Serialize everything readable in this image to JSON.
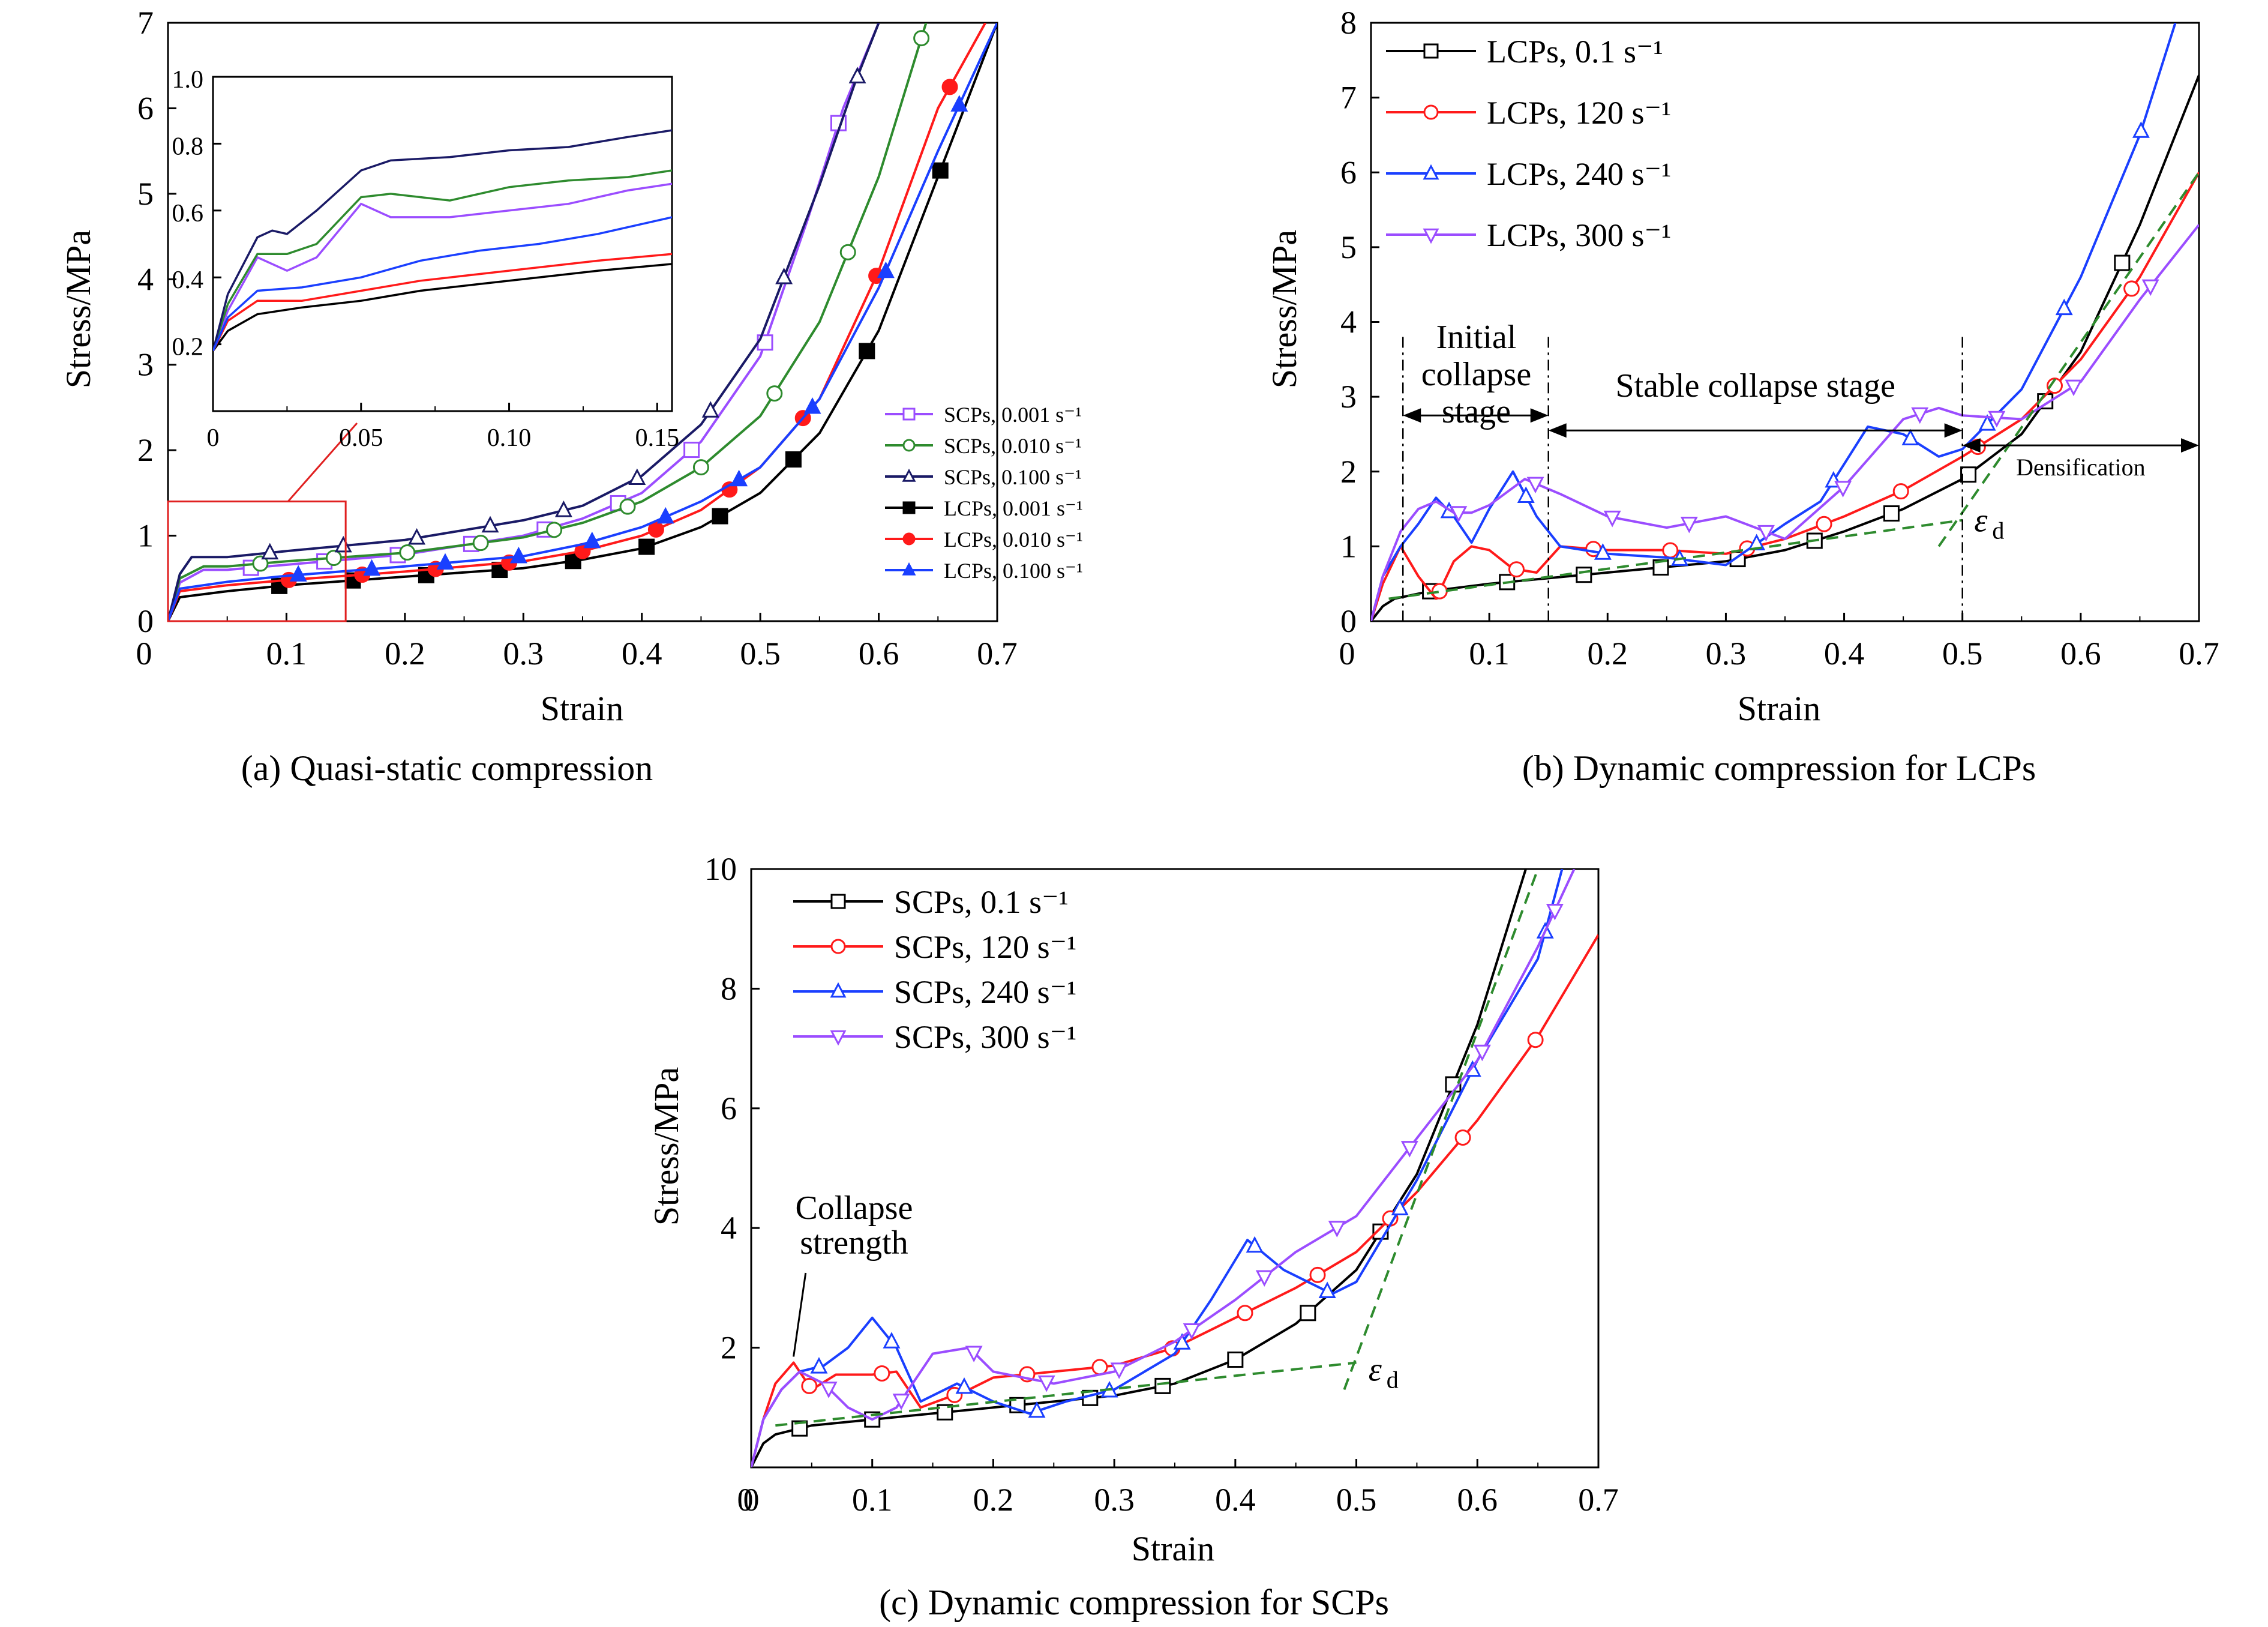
{
  "chart_data": [
    {
      "id": "a",
      "type": "line",
      "caption": "(a) Quasi-static compression",
      "xlabel": "Strain",
      "ylabel": "Stress/MPa",
      "xlim": [
        0,
        0.7
      ],
      "ylim": [
        0,
        7
      ],
      "xticks": [
        "0",
        "0.1",
        "0.2",
        "0.3",
        "0.4",
        "0.5",
        "0.6",
        "0.7"
      ],
      "yticks": [
        "0",
        "1",
        "2",
        "3",
        "4",
        "5",
        "6",
        "7"
      ],
      "legend_position": "middle-right",
      "series": [
        {
          "name": "SCPs, 0.001 s⁻¹",
          "color": "#9b4dff",
          "marker": "square-open",
          "x": [
            0,
            0.01,
            0.03,
            0.05,
            0.1,
            0.2,
            0.3,
            0.35,
            0.4,
            0.45,
            0.5,
            0.54,
            0.57,
            0.6
          ],
          "y": [
            0,
            0.45,
            0.6,
            0.6,
            0.66,
            0.78,
            1.0,
            1.2,
            1.5,
            2.1,
            3.1,
            4.7,
            6.0,
            7.0
          ]
        },
        {
          "name": "SCPs, 0.010 s⁻¹",
          "color": "#2e8b2e",
          "marker": "circle-open",
          "x": [
            0,
            0.01,
            0.03,
            0.05,
            0.1,
            0.2,
            0.3,
            0.35,
            0.4,
            0.45,
            0.5,
            0.55,
            0.6,
            0.64
          ],
          "y": [
            0,
            0.5,
            0.64,
            0.64,
            0.7,
            0.8,
            0.98,
            1.15,
            1.4,
            1.8,
            2.4,
            3.5,
            5.2,
            7.0
          ]
        },
        {
          "name": "SCPs, 0.100 s⁻¹",
          "color": "#1a1a66",
          "marker": "triangle-open",
          "x": [
            0,
            0.01,
            0.02,
            0.05,
            0.1,
            0.2,
            0.3,
            0.35,
            0.4,
            0.45,
            0.5,
            0.55,
            0.58,
            0.6
          ],
          "y": [
            0,
            0.55,
            0.75,
            0.75,
            0.82,
            0.95,
            1.18,
            1.35,
            1.7,
            2.3,
            3.3,
            5.1,
            6.3,
            7.0
          ]
        },
        {
          "name": "LCPs, 0.001 s⁻¹",
          "color": "#000000",
          "marker": "square-filled",
          "x": [
            0,
            0.01,
            0.05,
            0.1,
            0.2,
            0.3,
            0.35,
            0.4,
            0.45,
            0.5,
            0.55,
            0.6,
            0.65,
            0.7
          ],
          "y": [
            0,
            0.28,
            0.35,
            0.42,
            0.52,
            0.62,
            0.72,
            0.85,
            1.1,
            1.5,
            2.2,
            3.4,
            5.2,
            7.0
          ]
        },
        {
          "name": "LCPs, 0.010 s⁻¹",
          "color": "#ff1a1a",
          "marker": "circle-filled",
          "x": [
            0,
            0.01,
            0.05,
            0.1,
            0.2,
            0.3,
            0.35,
            0.4,
            0.45,
            0.5,
            0.55,
            0.6,
            0.65,
            0.69
          ],
          "y": [
            0,
            0.35,
            0.42,
            0.48,
            0.58,
            0.7,
            0.82,
            1.0,
            1.3,
            1.8,
            2.6,
            4.1,
            6.0,
            7.0
          ]
        },
        {
          "name": "LCPs, 0.100 s⁻¹",
          "color": "#1a3fff",
          "marker": "triangle-filled",
          "x": [
            0,
            0.01,
            0.05,
            0.1,
            0.2,
            0.3,
            0.35,
            0.4,
            0.45,
            0.5,
            0.55,
            0.6,
            0.65,
            0.7
          ],
          "y": [
            0,
            0.38,
            0.46,
            0.53,
            0.64,
            0.76,
            0.9,
            1.1,
            1.4,
            1.8,
            2.6,
            3.9,
            5.5,
            7.0
          ]
        }
      ],
      "inset": {
        "xlim": [
          0,
          0.155
        ],
        "ylim": [
          0,
          1.0
        ],
        "xticks": [
          "0",
          "0.05",
          "0.10",
          "0.15"
        ],
        "yticks": [
          "0.2",
          "0.4",
          "0.6",
          "0.8",
          "1.0"
        ],
        "series": [
          {
            "name": "SCPs, 0.001 s⁻¹",
            "color": "#9b4dff",
            "x": [
              0,
              0.005,
              0.015,
              0.025,
              0.035,
              0.05,
              0.06,
              0.08,
              0.1,
              0.12,
              0.14,
              0.155
            ],
            "y": [
              0.18,
              0.3,
              0.46,
              0.42,
              0.46,
              0.62,
              0.58,
              0.58,
              0.6,
              0.62,
              0.66,
              0.68
            ]
          },
          {
            "name": "SCPs, 0.010 s⁻¹",
            "color": "#2e8b2e",
            "x": [
              0,
              0.005,
              0.015,
              0.025,
              0.035,
              0.05,
              0.06,
              0.08,
              0.1,
              0.12,
              0.14,
              0.155
            ],
            "y": [
              0.18,
              0.32,
              0.47,
              0.47,
              0.5,
              0.64,
              0.65,
              0.63,
              0.67,
              0.69,
              0.7,
              0.72
            ]
          },
          {
            "name": "SCPs, 0.100 s⁻¹",
            "color": "#1a1a66",
            "x": [
              0,
              0.005,
              0.015,
              0.02,
              0.025,
              0.035,
              0.05,
              0.06,
              0.08,
              0.1,
              0.12,
              0.14,
              0.155
            ],
            "y": [
              0.18,
              0.35,
              0.52,
              0.54,
              0.53,
              0.6,
              0.72,
              0.75,
              0.76,
              0.78,
              0.79,
              0.82,
              0.84
            ]
          },
          {
            "name": "LCPs, 0.001 s⁻¹",
            "color": "#000000",
            "x": [
              0,
              0.005,
              0.015,
              0.03,
              0.05,
              0.07,
              0.09,
              0.11,
              0.13,
              0.155
            ],
            "y": [
              0.18,
              0.24,
              0.29,
              0.31,
              0.33,
              0.36,
              0.38,
              0.4,
              0.42,
              0.44
            ]
          },
          {
            "name": "LCPs, 0.010 s⁻¹",
            "color": "#ff1a1a",
            "x": [
              0,
              0.005,
              0.015,
              0.03,
              0.05,
              0.07,
              0.09,
              0.11,
              0.13,
              0.155
            ],
            "y": [
              0.18,
              0.27,
              0.33,
              0.33,
              0.36,
              0.39,
              0.41,
              0.43,
              0.45,
              0.47
            ]
          },
          {
            "name": "LCPs, 0.100 s⁻¹",
            "color": "#1a3fff",
            "x": [
              0,
              0.005,
              0.015,
              0.03,
              0.05,
              0.07,
              0.09,
              0.11,
              0.13,
              0.155
            ],
            "y": [
              0.18,
              0.28,
              0.36,
              0.37,
              0.4,
              0.45,
              0.48,
              0.5,
              0.53,
              0.58
            ]
          }
        ]
      }
    },
    {
      "id": "b",
      "type": "line",
      "caption": "(b) Dynamic compression for LCPs",
      "xlabel": "Strain",
      "ylabel": "Stress/MPa",
      "xlim": [
        0,
        0.7
      ],
      "ylim": [
        0,
        8
      ],
      "xticks": [
        "0",
        "0.1",
        "0.2",
        "0.3",
        "0.4",
        "0.5",
        "0.6",
        "0.7"
      ],
      "yticks": [
        "0",
        "1",
        "2",
        "3",
        "4",
        "5",
        "6",
        "7",
        "8"
      ],
      "legend_position": "top-left",
      "series": [
        {
          "name": "LCPs, 0.1 s⁻¹",
          "color": "#000000",
          "marker": "square-open",
          "x": [
            0,
            0.01,
            0.02,
            0.05,
            0.1,
            0.2,
            0.3,
            0.35,
            0.4,
            0.45,
            0.5,
            0.55,
            0.6,
            0.65,
            0.7
          ],
          "y": [
            0,
            0.2,
            0.3,
            0.4,
            0.5,
            0.65,
            0.8,
            0.95,
            1.2,
            1.5,
            1.9,
            2.5,
            3.6,
            5.3,
            7.3
          ]
        },
        {
          "name": "LCPs, 120 s⁻¹",
          "color": "#ff1a1a",
          "marker": "circle-open",
          "x": [
            0,
            0.01,
            0.025,
            0.04,
            0.055,
            0.07,
            0.085,
            0.1,
            0.12,
            0.14,
            0.16,
            0.2,
            0.25,
            0.3,
            0.35,
            0.4,
            0.45,
            0.5,
            0.55,
            0.6,
            0.65,
            0.7
          ],
          "y": [
            0,
            0.5,
            1.0,
            0.6,
            0.3,
            0.8,
            1.0,
            0.95,
            0.7,
            0.65,
            1.0,
            0.95,
            0.95,
            0.9,
            1.1,
            1.4,
            1.75,
            2.2,
            2.7,
            3.5,
            4.6,
            6.0
          ]
        },
        {
          "name": "LCPs, 240 s⁻¹",
          "color": "#1a3fff",
          "marker": "triangle-open",
          "x": [
            0,
            0.01,
            0.025,
            0.04,
            0.055,
            0.07,
            0.085,
            0.1,
            0.12,
            0.14,
            0.16,
            0.2,
            0.25,
            0.3,
            0.35,
            0.38,
            0.42,
            0.45,
            0.48,
            0.5,
            0.55,
            0.6,
            0.65,
            0.68
          ],
          "y": [
            0,
            0.6,
            1.0,
            1.3,
            1.65,
            1.4,
            1.05,
            1.5,
            2.0,
            1.4,
            1.0,
            0.9,
            0.85,
            0.75,
            1.3,
            1.6,
            2.6,
            2.5,
            2.2,
            2.3,
            3.1,
            4.6,
            6.5,
            8.0
          ]
        },
        {
          "name": "LCPs, 300 s⁻¹",
          "color": "#9b4dff",
          "marker": "triangle-down-open",
          "x": [
            0,
            0.01,
            0.025,
            0.04,
            0.055,
            0.07,
            0.085,
            0.1,
            0.13,
            0.16,
            0.2,
            0.25,
            0.3,
            0.35,
            0.4,
            0.45,
            0.48,
            0.5,
            0.55,
            0.6,
            0.65,
            0.7
          ],
          "y": [
            0,
            0.6,
            1.2,
            1.5,
            1.6,
            1.45,
            1.45,
            1.55,
            1.9,
            1.7,
            1.4,
            1.25,
            1.4,
            1.1,
            1.8,
            2.7,
            2.85,
            2.75,
            2.7,
            3.2,
            4.3,
            5.3
          ]
        }
      ],
      "annotations": {
        "initial_stage": [
          "Initial",
          "collapse",
          "stage"
        ],
        "stable_stage": "Stable collapse stage",
        "densification": "Densification",
        "eps_symbol": "ε",
        "eps_sub": "d",
        "eps_strain": 0.5,
        "initial_range": [
          0.027,
          0.15
        ],
        "stable_range": [
          0.15,
          0.5
        ],
        "densification_range": [
          0.5,
          0.7
        ],
        "plateau_line": {
          "x": [
            0.015,
            0.5
          ],
          "y": [
            0.3,
            1.35
          ]
        },
        "densification_line": {
          "x": [
            0.48,
            0.7
          ],
          "y": [
            1.0,
            6.0
          ]
        }
      }
    },
    {
      "id": "c",
      "type": "line",
      "caption": "(c) Dynamic compression for SCPs",
      "xlabel": "Strain",
      "ylabel": "Stress/MPa",
      "xlim": [
        0,
        0.7
      ],
      "ylim": [
        0,
        10
      ],
      "xticks": [
        "0",
        "0.1",
        "0.2",
        "0.3",
        "0.4",
        "0.5",
        "0.6",
        "0.7"
      ],
      "yticks": [
        "2",
        "4",
        "6",
        "8",
        "10"
      ],
      "legend_position": "top-left",
      "series": [
        {
          "name": "SCPs, 0.1 s⁻¹",
          "color": "#000000",
          "marker": "square-open",
          "x": [
            0,
            0.01,
            0.02,
            0.05,
            0.1,
            0.2,
            0.3,
            0.35,
            0.4,
            0.45,
            0.5,
            0.55,
            0.6,
            0.64
          ],
          "y": [
            0,
            0.4,
            0.55,
            0.7,
            0.8,
            1.0,
            1.2,
            1.4,
            1.8,
            2.4,
            3.3,
            4.9,
            7.4,
            10.0
          ]
        },
        {
          "name": "SCPs, 120 s⁻¹",
          "color": "#ff1a1a",
          "marker": "circle-open",
          "x": [
            0,
            0.01,
            0.02,
            0.035,
            0.05,
            0.07,
            0.1,
            0.12,
            0.14,
            0.18,
            0.2,
            0.25,
            0.3,
            0.35,
            0.4,
            0.45,
            0.5,
            0.55,
            0.6,
            0.65,
            0.7
          ],
          "y": [
            0,
            0.8,
            1.4,
            1.75,
            1.3,
            1.55,
            1.55,
            1.6,
            1.0,
            1.3,
            1.5,
            1.6,
            1.7,
            2.0,
            2.5,
            3.0,
            3.6,
            4.6,
            5.8,
            7.2,
            8.9
          ]
        },
        {
          "name": "SCPs, 240 s⁻¹",
          "color": "#1a3fff",
          "marker": "triangle-open",
          "x": [
            0,
            0.01,
            0.025,
            0.04,
            0.06,
            0.08,
            0.1,
            0.12,
            0.14,
            0.17,
            0.2,
            0.23,
            0.26,
            0.3,
            0.35,
            0.38,
            0.41,
            0.44,
            0.48,
            0.5,
            0.55,
            0.6,
            0.65,
            0.67
          ],
          "y": [
            0,
            0.8,
            1.3,
            1.6,
            1.7,
            2.0,
            2.5,
            2.0,
            1.1,
            1.4,
            1.1,
            0.9,
            1.1,
            1.3,
            1.9,
            2.8,
            3.8,
            3.3,
            2.9,
            3.1,
            4.8,
            6.8,
            8.5,
            10.0
          ]
        },
        {
          "name": "SCPs, 300 s⁻¹",
          "color": "#9b4dff",
          "marker": "triangle-down-open",
          "x": [
            0,
            0.01,
            0.025,
            0.04,
            0.06,
            0.08,
            0.1,
            0.12,
            0.15,
            0.18,
            0.2,
            0.25,
            0.3,
            0.35,
            0.4,
            0.45,
            0.5,
            0.55,
            0.6,
            0.65,
            0.68
          ],
          "y": [
            0,
            0.8,
            1.3,
            1.6,
            1.4,
            1.0,
            0.8,
            1.0,
            1.9,
            2.0,
            1.6,
            1.4,
            1.6,
            2.1,
            2.8,
            3.6,
            4.2,
            5.5,
            6.8,
            8.7,
            10.0
          ]
        }
      ],
      "annotations": {
        "collapse_strength": [
          "Collapse",
          "strength"
        ],
        "eps_symbol": "ε",
        "eps_sub": "d",
        "plateau_line": {
          "x": [
            0.02,
            0.5
          ],
          "y": [
            0.7,
            1.75
          ]
        },
        "densification_line": {
          "x": [
            0.49,
            0.65
          ],
          "y": [
            1.3,
            10.0
          ]
        }
      }
    }
  ]
}
